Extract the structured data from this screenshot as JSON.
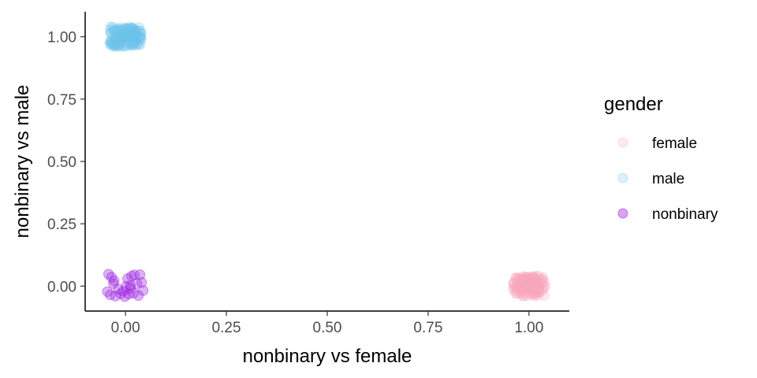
{
  "chart_data": {
    "type": "scatter",
    "xlabel": "nonbinary vs female",
    "ylabel": "nonbinary vs male",
    "xlim": [
      -0.1,
      1.1
    ],
    "ylim": [
      -0.1,
      1.1
    ],
    "x_ticks": [
      0,
      0.25,
      0.5,
      0.75,
      1
    ],
    "y_ticks": [
      0,
      0.25,
      0.5,
      0.75,
      1
    ],
    "x_tick_labels": [
      "0.00",
      "0.25",
      "0.50",
      "0.75",
      "1.00"
    ],
    "y_tick_labels": [
      "0.00",
      "0.25",
      "0.50",
      "0.75",
      "1.00"
    ],
    "grid": false,
    "jitter": 0.04,
    "legend": {
      "title": "gender",
      "placement": "right",
      "entries": [
        "female",
        "male",
        "nonbinary"
      ]
    },
    "series": [
      {
        "name": "female",
        "color": "#F9A8BD",
        "opacity": 0.25,
        "x": 1,
        "y": 0,
        "count": 120
      },
      {
        "name": "male",
        "color": "#6EC2EA",
        "opacity": 0.25,
        "x": 0,
        "y": 1,
        "count": 120
      },
      {
        "name": "nonbinary",
        "color": "#9B1FE0",
        "opacity": 0.35,
        "points": [
          [
            -0.042,
            0.048
          ],
          [
            -0.035,
            0.036
          ],
          [
            -0.028,
            0.022
          ],
          [
            -0.045,
            -0.022
          ],
          [
            -0.038,
            -0.035
          ],
          [
            -0.025,
            -0.04
          ],
          [
            -0.012,
            -0.03
          ],
          [
            -0.018,
            -0.012
          ],
          [
            -0.005,
            -0.02
          ],
          [
            0.002,
            0.0
          ],
          [
            0.008,
            -0.032
          ],
          [
            0.012,
            -0.01
          ],
          [
            0.015,
            0.04
          ],
          [
            0.022,
            0.045
          ],
          [
            0.028,
            0.01
          ],
          [
            0.032,
            -0.038
          ],
          [
            0.036,
            0.046
          ],
          [
            0.04,
            0.015
          ],
          [
            0.044,
            -0.018
          ],
          [
            0.012,
            0.002
          ],
          [
            -0.002,
            -0.042
          ],
          [
            0.02,
            -0.028
          ],
          [
            -0.03,
            0.01
          ],
          [
            0.005,
            0.03
          ]
        ]
      }
    ]
  }
}
